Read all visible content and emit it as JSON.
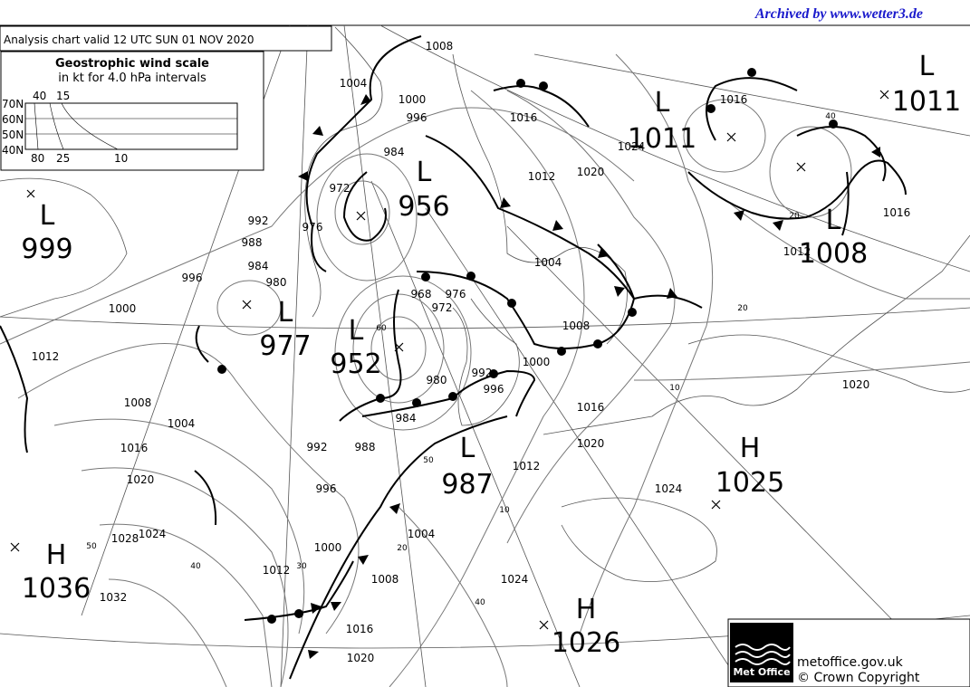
{
  "header": {
    "archive": "Archived by www.wetter3.de",
    "title": "Analysis chart  valid 12 UTC SUN 01  NOV 2020"
  },
  "wind_scale": {
    "title": "Geostrophic wind scale",
    "subtitle": "in kt for 4.0 hPa intervals",
    "latitudes": [
      "70N",
      "60N",
      "50N",
      "40N"
    ],
    "top_speeds": [
      "40",
      "15"
    ],
    "bottom_speeds": [
      "80",
      "25",
      "10"
    ]
  },
  "pressure_centres": [
    {
      "type": "L",
      "value": "999"
    },
    {
      "type": "L",
      "value": "977"
    },
    {
      "type": "L",
      "value": "952"
    },
    {
      "type": "L",
      "value": "956"
    },
    {
      "type": "L",
      "value": "987"
    },
    {
      "type": "L",
      "value": "1011"
    },
    {
      "type": "L",
      "value": "1011"
    },
    {
      "type": "L",
      "value": "1008"
    },
    {
      "type": "H",
      "value": "1036"
    },
    {
      "type": "H",
      "value": "1025"
    },
    {
      "type": "H",
      "value": "1026"
    }
  ],
  "isobar_labels": [
    "1008",
    "1004",
    "1000",
    "996",
    "984",
    "972",
    "976",
    "992",
    "988",
    "984",
    "980",
    "996",
    "1000",
    "1012",
    "1008",
    "1004",
    "1016",
    "1020",
    "1024",
    "1028",
    "1032",
    "992",
    "988",
    "996",
    "1000",
    "1012",
    "1004",
    "1008",
    "1016",
    "1020",
    "968",
    "972",
    "976",
    "980",
    "984",
    "992",
    "996",
    "1000",
    "1008",
    "1004",
    "1012",
    "1016",
    "1020",
    "1024",
    "1016",
    "1016",
    "1012",
    "1016",
    "1020",
    "1012",
    "1024",
    "1024",
    "1020"
  ],
  "speed_labels": [
    "60",
    "50",
    "20",
    "30",
    "40",
    "50",
    "10",
    "40",
    "10",
    "20",
    "40",
    "20"
  ],
  "footer": {
    "logo": "Met Office",
    "site": "metoffice.gov.uk",
    "copyright": "© Crown Copyright"
  }
}
